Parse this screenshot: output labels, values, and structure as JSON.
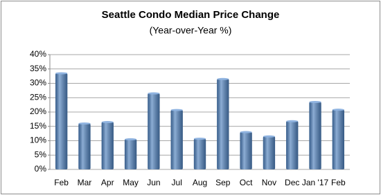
{
  "chart_data": {
    "type": "bar",
    "title": "Seattle Condo Median Price Change",
    "subtitle": "(Year-over-Year %)",
    "categories": [
      "Feb",
      "Mar",
      "Apr",
      "May",
      "Jun",
      "Jul",
      "Aug",
      "Sep",
      "Oct",
      "Nov",
      "Dec",
      "Jan '17",
      "Feb"
    ],
    "values": [
      33.5,
      16,
      16.5,
      10.5,
      26.5,
      20.7,
      10.7,
      31.5,
      13,
      11.5,
      16.8,
      23.5,
      20.8
    ],
    "color": "#4f81bd",
    "ylim": [
      0,
      40
    ],
    "yticks": [
      {
        "value": 0,
        "label": "0%"
      },
      {
        "value": 5,
        "label": "5%"
      },
      {
        "value": 10,
        "label": "10%"
      },
      {
        "value": 15,
        "label": "15%"
      },
      {
        "value": 20,
        "label": "20%"
      },
      {
        "value": 25,
        "label": "25%"
      },
      {
        "value": 30,
        "label": "30%"
      },
      {
        "value": 35,
        "label": "35%"
      },
      {
        "value": 40,
        "label": "40%"
      }
    ],
    "grid": true
  }
}
